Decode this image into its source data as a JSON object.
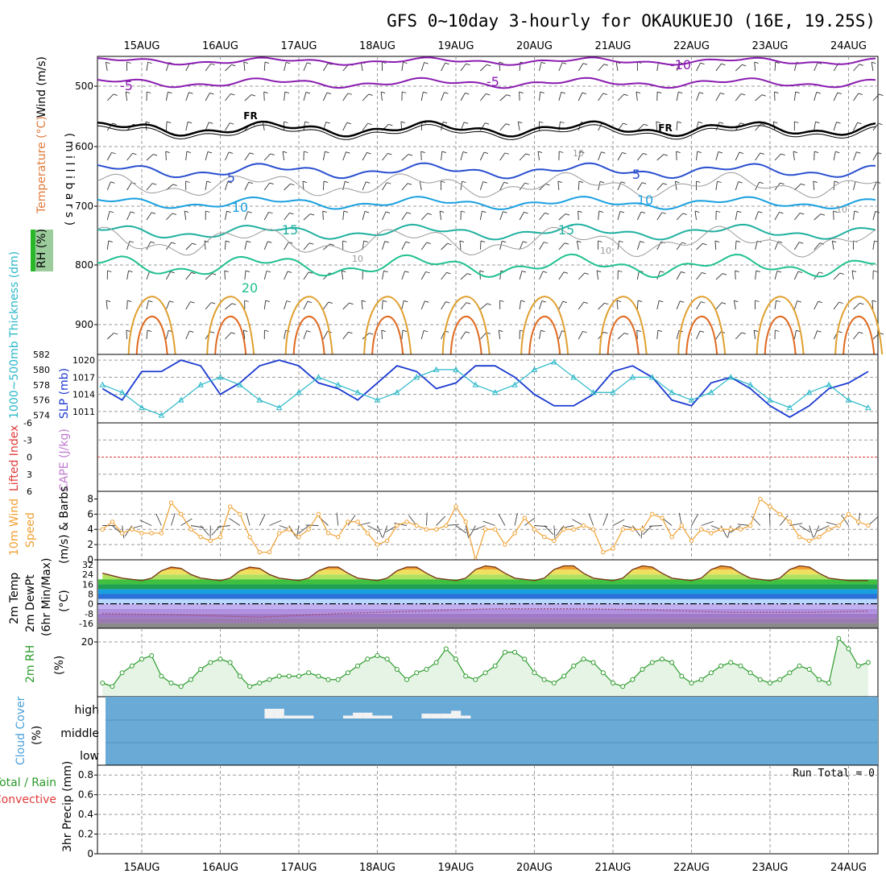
{
  "title": "GFS 0~10day 3-hourly for OKAUKUEJO (16E, 19.25S)",
  "dates": [
    "15AUG",
    "16AUG",
    "17AUG",
    "18AUG",
    "19AUG",
    "20AUG",
    "21AUG",
    "22AUG",
    "23AUG",
    "24AUG"
  ],
  "colors": {
    "frame": "#000000",
    "grid": "#9a9a9a",
    "temp_minus10": "#8a1cb0",
    "temp_5": "#2a4fd0",
    "temp_10": "#1aa0e0",
    "temp_15": "#20b0a0",
    "temp_20": "#20c090",
    "temp_25": "#e0a030",
    "temp_30": "#e06a20",
    "freezing": "#000000",
    "rh": "#9a9a9a",
    "slp": "#1a3ad0",
    "thickness": "#2ab8c8",
    "li_zero": "#e03a3a",
    "wind10": "#f0a030",
    "rh2m": "#2a9a2a",
    "rh2m_fill": "#e6f4e6",
    "cloud": "#6aaad6",
    "cloud_bar": "#f2f2f2"
  },
  "panels": {
    "upper_air": {
      "label_wind": "Wind (m/s)",
      "label_temp": "Temperature (°C)",
      "label_rh": "RH (%)",
      "label_mb": "( m i l l i b a r s )",
      "yticks": [
        "500",
        "600",
        "700",
        "800",
        "900"
      ],
      "contour_labels": [
        "-10",
        "-5",
        "-5",
        "FR",
        "FR",
        "5",
        "5",
        "10",
        "10",
        "10",
        "15",
        "15",
        "20",
        "10",
        "10",
        "10"
      ]
    },
    "slp_thickness": {
      "label_thickness": "1000~500mb Thickness (dm)",
      "label_slp": "SLP (mb)",
      "thickness_ticks": [
        "582",
        "580",
        "578",
        "576",
        "574"
      ],
      "slp_ticks": [
        "1020",
        "1017",
        "1014",
        "1011"
      ]
    },
    "lifted_cape": {
      "label_li": "Lifted Index",
      "label_cape": "CAPE (J/kg)",
      "yticks": [
        "-6",
        "-3",
        "0",
        "3",
        "6"
      ]
    },
    "wind10": {
      "label_a": "10m Wind",
      "label_b": "Speed",
      "label_c": "(m/s) & Barbs",
      "yticks": [
        "8",
        "6",
        "4",
        "2",
        "0"
      ]
    },
    "temp2m": {
      "label_a": "2m Temp",
      "label_b": "2m DewPt",
      "label_c": "(6hr Min/Max)",
      "label_unit": "(°C)",
      "yticks": [
        "32",
        "24",
        "16",
        "8",
        "0",
        "-8",
        "-16"
      ]
    },
    "rh2m": {
      "label_a": "2m RH",
      "label_b": "(%)",
      "yticks": [
        "20"
      ]
    },
    "cloud": {
      "label_a": "Cloud Cover",
      "label_b": "(%)",
      "levels": [
        "high",
        "middle",
        "low"
      ]
    },
    "precip": {
      "label_a": "Total / Rain",
      "label_b": "Convective",
      "label_c": "3hr Precip (mm)",
      "run_total": "Run Total = 0",
      "yticks": [
        "0.8",
        "0.6",
        "0.4",
        "0.2",
        "0"
      ]
    }
  },
  "chart_data": [
    {
      "type": "line",
      "title": "SLP (mb)",
      "name": "SLP",
      "x_unit": "days from start (14AUG 12Z)",
      "x": [
        0,
        0.25,
        0.5,
        0.75,
        1,
        1.25,
        1.5,
        1.75,
        2,
        2.25,
        2.5,
        2.75,
        3,
        3.25,
        3.5,
        3.75,
        4,
        4.25,
        4.5,
        4.75,
        5,
        5.25,
        5.5,
        5.75,
        6,
        6.25,
        6.5,
        6.75,
        7,
        7.25,
        7.5,
        7.75,
        8,
        8.25,
        8.5,
        8.75,
        9,
        9.25,
        9.5,
        9.75
      ],
      "values": [
        1015,
        1013,
        1018,
        1018,
        1020,
        1019,
        1014,
        1016,
        1019,
        1020,
        1019,
        1016,
        1015,
        1013,
        1016,
        1019,
        1018,
        1015,
        1016,
        1019,
        1019,
        1017,
        1014,
        1012,
        1012,
        1014,
        1018,
        1019,
        1017,
        1013,
        1012,
        1016,
        1017,
        1015,
        1012,
        1010,
        1012,
        1015,
        1016,
        1018
      ],
      "ylim": [
        1009,
        1021
      ]
    },
    {
      "type": "line",
      "title": "1000~500mb Thickness (dm)",
      "name": "Thickness",
      "x": [
        0,
        0.25,
        0.5,
        0.75,
        1,
        1.25,
        1.5,
        1.75,
        2,
        2.25,
        2.5,
        2.75,
        3,
        3.25,
        3.5,
        3.75,
        4,
        4.25,
        4.5,
        4.75,
        5,
        5.25,
        5.5,
        5.75,
        6,
        6.25,
        6.5,
        6.75,
        7,
        7.25,
        7.5,
        7.75,
        8,
        8.25,
        8.5,
        8.75,
        9,
        9.25,
        9.5,
        9.75
      ],
      "values": [
        578,
        577,
        575,
        574,
        576,
        578,
        579,
        578,
        576,
        575,
        577,
        579,
        578,
        577,
        576,
        577,
        579,
        580,
        580,
        578,
        577,
        578,
        580,
        581,
        579,
        577,
        577,
        579,
        579,
        577,
        576,
        577,
        579,
        578,
        576,
        575,
        577,
        578,
        576,
        575
      ],
      "ylim": [
        573,
        582
      ]
    },
    {
      "type": "line",
      "title": "Lifted Index / CAPE",
      "name": "Lifted Index zero line",
      "x": [
        0,
        9.75
      ],
      "values": [
        0,
        0
      ],
      "ylim": [
        -6,
        6
      ]
    },
    {
      "type": "line",
      "title": "10m Wind Speed (m/s)",
      "name": "Wind speed",
      "x": [
        0,
        0.125,
        0.25,
        0.375,
        0.5,
        0.625,
        0.75,
        0.875,
        1,
        1.125,
        1.25,
        1.375,
        1.5,
        1.625,
        1.75,
        1.875,
        2,
        2.125,
        2.25,
        2.375,
        2.5,
        2.625,
        2.75,
        2.875,
        3,
        3.125,
        3.25,
        3.375,
        3.5,
        3.625,
        3.75,
        3.875,
        4,
        4.125,
        4.25,
        4.375,
        4.5,
        4.625,
        4.75,
        4.875,
        5,
        5.125,
        5.25,
        5.375,
        5.5,
        5.625,
        5.75,
        5.875,
        6,
        6.125,
        6.25,
        6.375,
        6.5,
        6.625,
        6.75,
        6.875,
        7,
        7.125,
        7.25,
        7.375,
        7.5,
        7.625,
        7.75,
        7.875,
        8,
        8.125,
        8.25,
        8.375,
        8.5,
        8.625,
        8.75,
        8.875,
        9,
        9.125,
        9.25,
        9.375,
        9.5,
        9.625,
        9.75
      ],
      "values": [
        4,
        5,
        3.5,
        4,
        3.5,
        3.5,
        3.5,
        7.5,
        6,
        4,
        3,
        2.5,
        3,
        7,
        6,
        3,
        1,
        1,
        3.5,
        4,
        3,
        4,
        6,
        3.5,
        3,
        5,
        5,
        3.5,
        2,
        2.5,
        4.5,
        5,
        4.5,
        4,
        4,
        4.5,
        7,
        5,
        0,
        4,
        4,
        2,
        3.5,
        5.5,
        4,
        3,
        2.5,
        4,
        4,
        4.5,
        4,
        1,
        1.5,
        4,
        4,
        4,
        6,
        5.5,
        3,
        4.5,
        2.5,
        4,
        3.5,
        4,
        4,
        4,
        4.5,
        8,
        7,
        6,
        5,
        3,
        2.5,
        3,
        4,
        4.5,
        6,
        5,
        4.5
      ],
      "ylim": [
        0,
        9
      ]
    },
    {
      "type": "line",
      "title": "2m RH (%)",
      "name": "2m RH",
      "x": [
        0,
        0.125,
        0.25,
        0.375,
        0.5,
        0.625,
        0.75,
        0.875,
        1,
        1.125,
        1.25,
        1.375,
        1.5,
        1.625,
        1.75,
        1.875,
        2,
        2.125,
        2.25,
        2.375,
        2.5,
        2.625,
        2.75,
        2.875,
        3,
        3.125,
        3.25,
        3.375,
        3.5,
        3.625,
        3.75,
        3.875,
        4,
        4.125,
        4.25,
        4.375,
        4.5,
        4.625,
        4.75,
        4.875,
        5,
        5.125,
        5.25,
        5.375,
        5.5,
        5.625,
        5.75,
        5.875,
        6,
        6.125,
        6.25,
        6.375,
        6.5,
        6.625,
        6.75,
        6.875,
        7,
        7.125,
        7.25,
        7.375,
        7.5,
        7.625,
        7.75,
        7.875,
        8,
        8.125,
        8.25,
        8.375,
        8.5,
        8.625,
        8.75,
        8.875,
        9,
        9.125,
        9.25,
        9.375,
        9.5,
        9.625,
        9.75
      ],
      "values": [
        8,
        7,
        11,
        13,
        15,
        16,
        10,
        8,
        7,
        9,
        12,
        14,
        15,
        14,
        10,
        7,
        8,
        9,
        10,
        10,
        10,
        11,
        10,
        9,
        9,
        11,
        13,
        15,
        16,
        15,
        12,
        9,
        11,
        12,
        14,
        18,
        15,
        10,
        9,
        11,
        13,
        17,
        17,
        15,
        11,
        9,
        8,
        10,
        13,
        15,
        14,
        11,
        8,
        7,
        9,
        12,
        14,
        15,
        14,
        10,
        8,
        9,
        11,
        13,
        14,
        13,
        11,
        9,
        8,
        9,
        11,
        13,
        12,
        9,
        8,
        21,
        18,
        13,
        14
      ],
      "ylim": [
        4,
        24
      ]
    },
    {
      "type": "area",
      "title": "2m Temp (°C)",
      "name": "2m Temp",
      "x": [
        0,
        0.125,
        0.25,
        0.375,
        0.5,
        0.625,
        0.75,
        0.875,
        1,
        1.125,
        1.25,
        1.375,
        1.5,
        1.625,
        1.75,
        1.875,
        2,
        2.125,
        2.25,
        2.375,
        2.5,
        2.625,
        2.75,
        2.875,
        3,
        3.125,
        3.25,
        3.375,
        3.5,
        3.625,
        3.75,
        3.875,
        4,
        4.125,
        4.25,
        4.375,
        4.5,
        4.625,
        4.75,
        4.875,
        5,
        5.125,
        5.25,
        5.375,
        5.5,
        5.625,
        5.75,
        5.875,
        6,
        6.125,
        6.25,
        6.375,
        6.5,
        6.625,
        6.75,
        6.875,
        7,
        7.125,
        7.25,
        7.375,
        7.5,
        7.625,
        7.75,
        7.875,
        8,
        8.125,
        8.25,
        8.375,
        8.5,
        8.625,
        8.75,
        8.875,
        9,
        9.125,
        9.25,
        9.375,
        9.5,
        9.625,
        9.75
      ],
      "values": [
        25,
        23,
        21,
        20,
        19,
        21,
        27,
        30,
        29,
        24,
        21,
        20,
        19,
        21,
        27,
        30,
        29,
        24,
        21,
        20,
        19,
        21,
        27,
        30,
        30,
        25,
        21,
        20,
        19,
        21,
        27,
        30,
        30,
        25,
        21,
        20,
        19,
        21,
        28,
        31,
        30,
        25,
        21,
        20,
        19,
        21,
        28,
        31,
        31,
        25,
        21,
        20,
        19,
        21,
        28,
        31,
        30,
        25,
        21,
        20,
        19,
        21,
        28,
        31,
        30,
        25,
        21,
        20,
        19,
        21,
        28,
        31,
        30,
        25,
        21,
        20,
        19,
        19,
        19
      ],
      "ylim": [
        -20,
        36
      ]
    },
    {
      "type": "line",
      "title": "2m DewPt (°C)",
      "name": "2m DewPt",
      "x": [
        0,
        1,
        2,
        3,
        4,
        5,
        6,
        7,
        8,
        9,
        9.75
      ],
      "values": [
        -8,
        -9,
        -11,
        -8,
        -6,
        -4,
        -4,
        -5,
        -7,
        -7,
        -6
      ],
      "ylim": [
        -20,
        36
      ]
    },
    {
      "type": "bar",
      "title": "Cloud Cover (%) high",
      "name": "High cloud",
      "x": [
        2.125,
        2.25,
        2.375,
        2.5,
        2.625,
        3.125,
        3.25,
        3.375,
        3.5,
        3.625,
        4.125,
        4.25,
        4.375,
        4.5,
        4.625
      ],
      "values": [
        1,
        1,
        0.3,
        0.3,
        0.3,
        0.3,
        0.6,
        0.6,
        0.3,
        0.3,
        0.5,
        0.5,
        0.5,
        0.8,
        0.3
      ],
      "ylim": [
        0,
        1
      ]
    },
    {
      "type": "bar",
      "title": "3hr Precip (mm)",
      "name": "Precip",
      "x": [
        0,
        9.75
      ],
      "values": [
        0,
        0
      ],
      "ylim": [
        0,
        0.9
      ]
    }
  ]
}
